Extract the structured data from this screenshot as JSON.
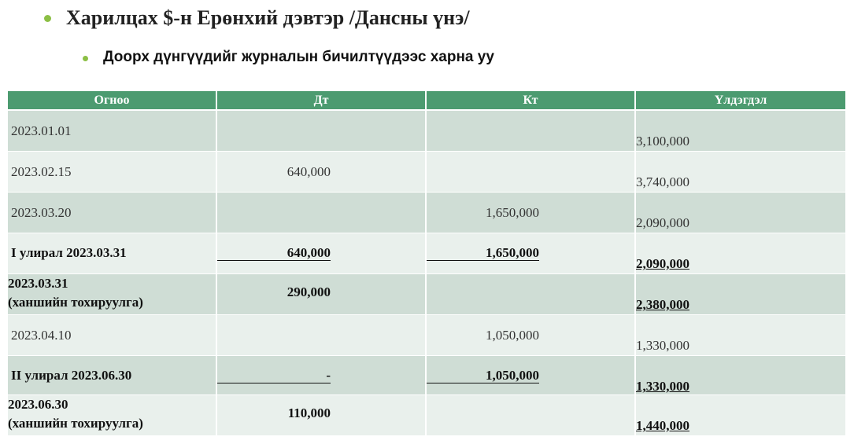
{
  "header": {
    "title": "Харилцах $-н Ерөнхий дэвтэр /Дансны үнэ/",
    "subtitle": "Доорх дүнгүүдийг журналын бичилтүүдээс харна уу"
  },
  "table": {
    "columns": [
      "Огноо",
      "Дт",
      "Кт",
      "Үлдэгдэл"
    ],
    "rows": [
      {
        "date": "2023.01.01",
        "balance": "3,100,000"
      },
      {
        "date": "2023.02.15",
        "dt": "640,000",
        "balance": "3,740,000"
      },
      {
        "date": "2023.03.20",
        "kt": "1,650,000",
        "balance": "2,090,000"
      },
      {
        "date": "I улирал 2023.03.31",
        "dt": "640,000",
        "kt": "1,650,000",
        "balance": "2,090,000",
        "bold": true,
        "total": true
      },
      {
        "date": "2023.03.31",
        "note": "(ханшийн тохируулга)",
        "dt": "290,000",
        "balance": "2,380,000",
        "bold": true
      },
      {
        "date": "2023.04.10",
        "kt": "1,050,000",
        "balance": "1,330,000"
      },
      {
        "date": "II улирал 2023.06.30",
        "dt": "-",
        "kt": "1,050,000",
        "balance": "1,330,000",
        "bold": true,
        "total": true
      },
      {
        "date": "2023.06.30",
        "note": "(ханшийн тохируулга)",
        "dt": "110,000",
        "balance": "1,440,000",
        "bold": true
      }
    ]
  }
}
